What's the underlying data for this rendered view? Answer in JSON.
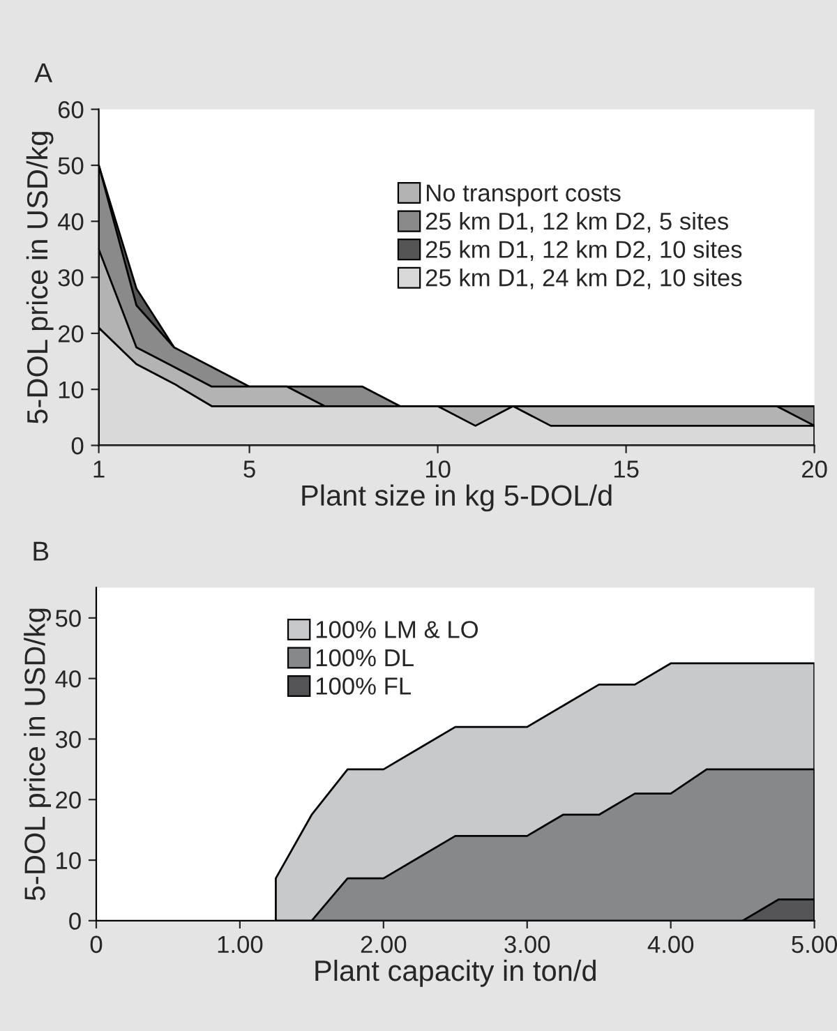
{
  "chart_data": [
    {
      "type": "area",
      "title": "A",
      "xlabel": "Plant size in kg 5-DOL/d",
      "ylabel": "5-DOL price in USD/kg",
      "x": [
        1,
        2,
        3,
        4,
        5,
        6,
        7,
        8,
        9,
        10,
        11,
        12,
        13,
        14,
        15,
        16,
        17,
        18,
        19,
        20
      ],
      "xlim": [
        1,
        20
      ],
      "xticks": [
        1,
        5,
        10,
        15,
        20
      ],
      "ylim": [
        0,
        60
      ],
      "yticks": [
        0,
        10,
        20,
        30,
        40,
        50,
        60
      ],
      "legend": "right",
      "grid": false,
      "series": [
        {
          "name": "No transport costs",
          "color": "#b3b3b3",
          "values": [
            35,
            17.5,
            14,
            10.5,
            10.5,
            10.5,
            7,
            7,
            7,
            7,
            7,
            7,
            7,
            7,
            7,
            7,
            7,
            7,
            7,
            3.5
          ]
        },
        {
          "name": "25 km D1, 12 km D2, 5 sites",
          "color": "#8a8a8a",
          "values": [
            50,
            25,
            17.5,
            14,
            10.5,
            10.5,
            10.5,
            10.5,
            7,
            7,
            7,
            7,
            7,
            7,
            7,
            7,
            7,
            7,
            7,
            7
          ]
        },
        {
          "name": "25 km D1, 12 km D2, 10 sites",
          "color": "#555555",
          "values": [
            50,
            28,
            17.5,
            null,
            null,
            null,
            null,
            null,
            null,
            null,
            null,
            null,
            null,
            null,
            null,
            null,
            null,
            null,
            null,
            null
          ]
        },
        {
          "name": "25 km D1, 24 km D2, 10 sites",
          "color": "#d9d9d9",
          "values": [
            21,
            14.5,
            11,
            7,
            7,
            7,
            7,
            7,
            7,
            7,
            3.5,
            7,
            3.5,
            3.5,
            3.5,
            3.5,
            3.5,
            3.5,
            3.5,
            3.5
          ]
        }
      ]
    },
    {
      "type": "area",
      "title": "B",
      "xlabel": "Plant capacity in ton/d",
      "ylabel": "5-DOL price in USD/kg",
      "x": [
        1.25,
        1.5,
        1.75,
        2,
        2.25,
        2.5,
        2.75,
        3,
        3.25,
        3.5,
        3.75,
        4,
        4.25,
        4.5,
        4.75,
        5
      ],
      "xlim": [
        0,
        5
      ],
      "xticks": [
        0,
        {
          "value": 1,
          "label": "1.00"
        },
        {
          "value": 2,
          "label": "2.00"
        },
        {
          "value": 3,
          "label": "3.00"
        },
        {
          "value": 4,
          "label": "4.00"
        },
        {
          "value": 5,
          "label": "5.00"
        }
      ],
      "ylim": [
        0,
        55
      ],
      "yticks": [
        0,
        10,
        20,
        30,
        40,
        50
      ],
      "legend": "top",
      "grid": false,
      "series": [
        {
          "name": "100% LM & LO",
          "color": "#c8c9ca",
          "values": [
            7,
            17.5,
            25,
            25,
            28.5,
            32,
            32,
            32,
            35.5,
            39,
            39,
            42.5,
            42.5,
            42.5,
            42.5,
            42.5
          ]
        },
        {
          "name": "100% DL",
          "color": "#87888a",
          "values": [
            null,
            0,
            7,
            7,
            10.5,
            14,
            14,
            14,
            17.5,
            17.5,
            21,
            21,
            25,
            25,
            25,
            25
          ]
        },
        {
          "name": "100% FL",
          "color": "#555557",
          "values": [
            null,
            null,
            null,
            null,
            null,
            null,
            null,
            null,
            null,
            null,
            null,
            null,
            null,
            0,
            3.5,
            3.5
          ]
        }
      ]
    }
  ]
}
